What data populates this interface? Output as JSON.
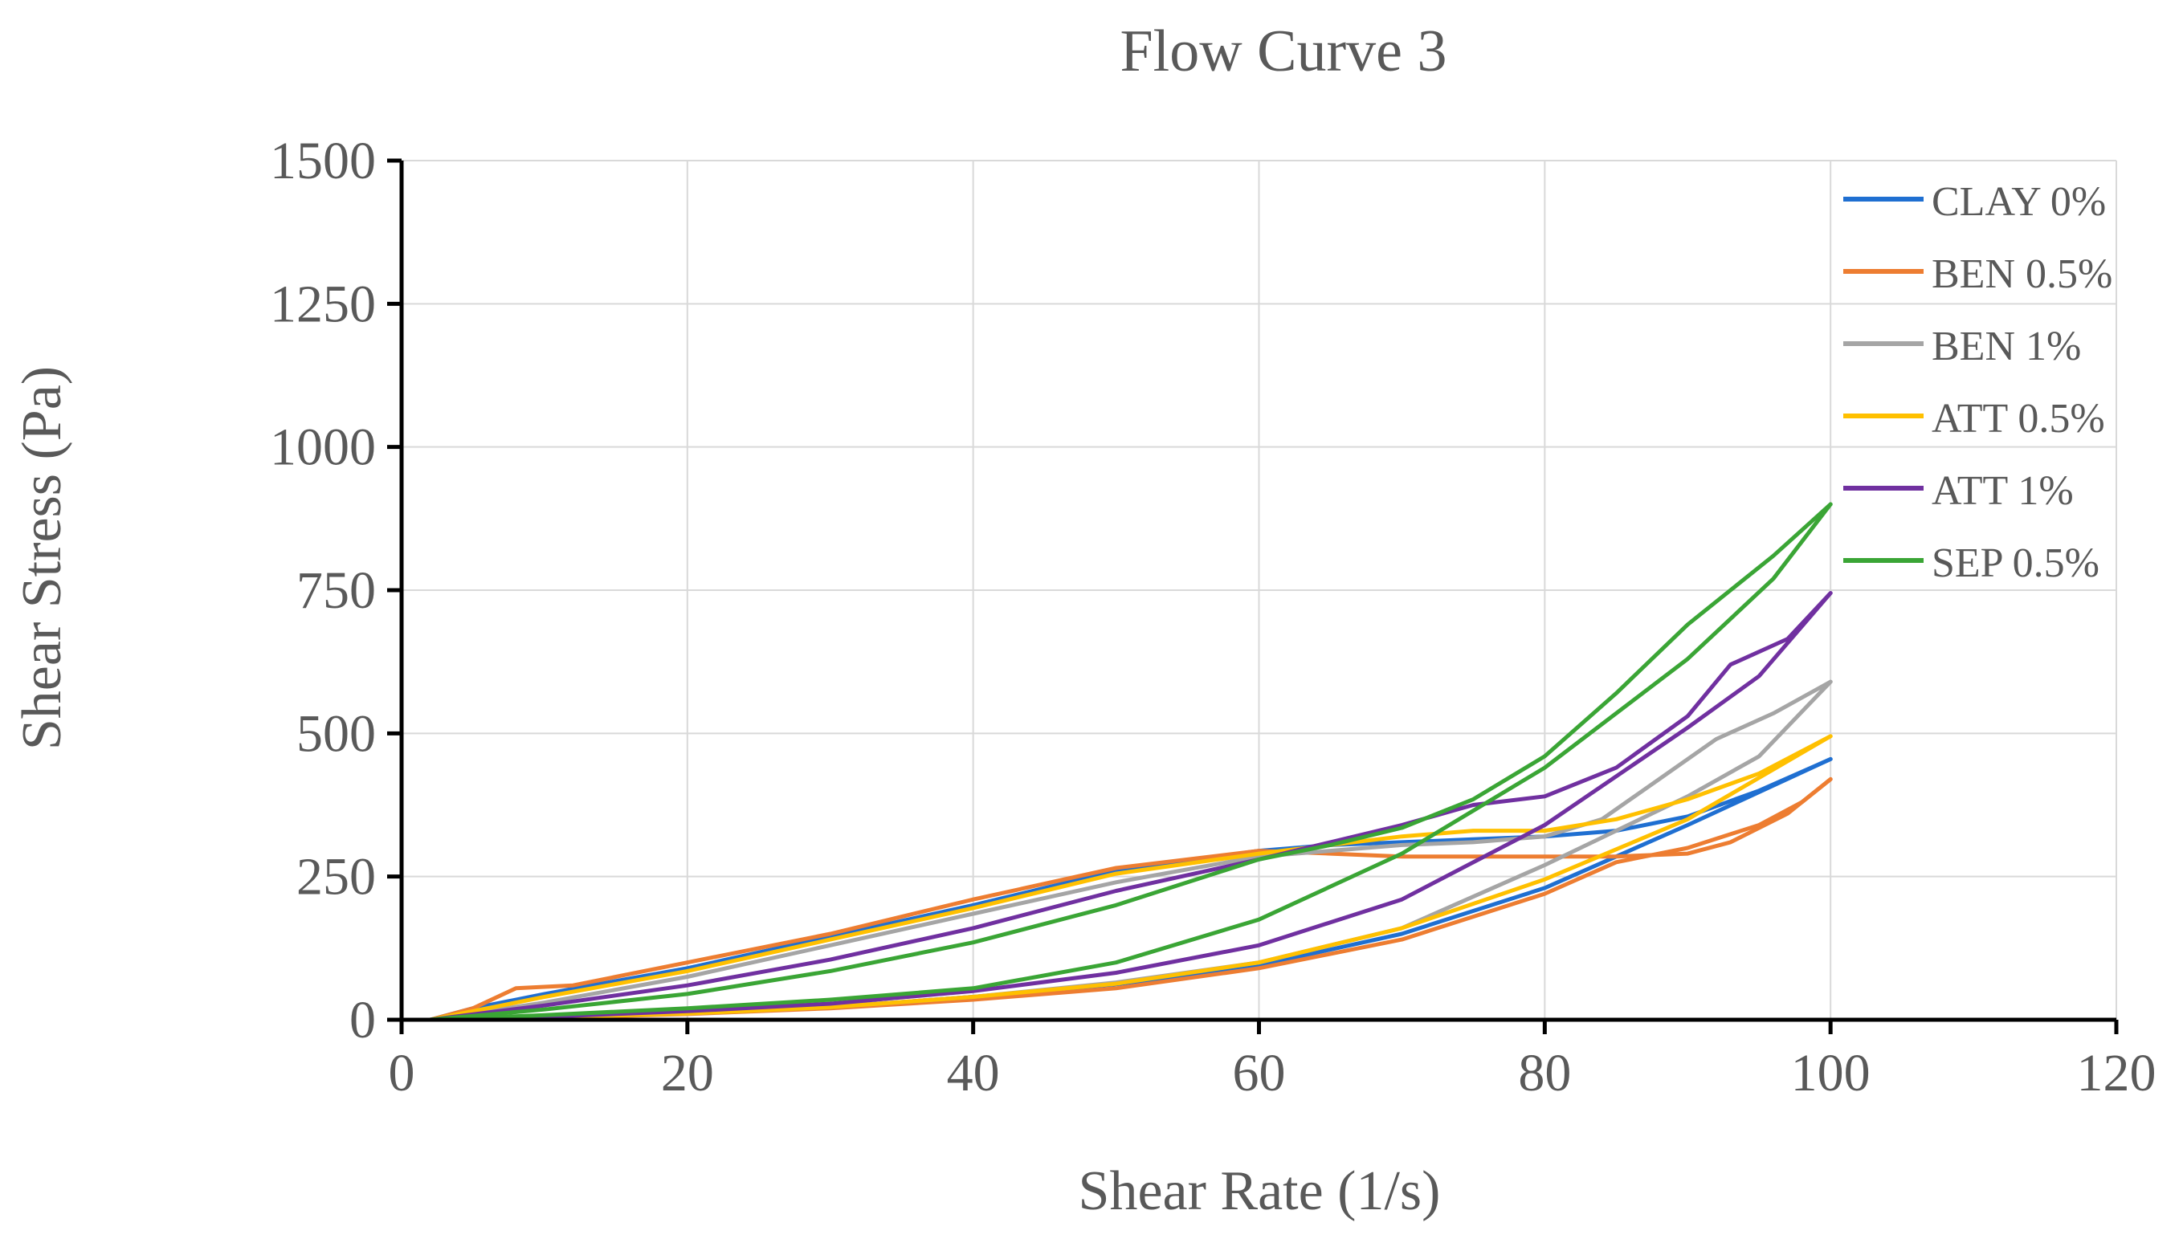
{
  "chart_data": {
    "type": "line",
    "title": "Flow Curve 3",
    "xlabel": "Shear Rate (1/s)",
    "ylabel": "Shear Stress (Pa)",
    "xlim": [
      0,
      120
    ],
    "ylim": [
      0,
      1500
    ],
    "xticks": [
      0,
      20,
      40,
      60,
      80,
      100,
      120
    ],
    "yticks": [
      0,
      250,
      500,
      750,
      1000,
      1250,
      1500
    ],
    "grid": true,
    "legend_position": "top-right",
    "series": [
      {
        "name": "CLAY 0%",
        "color": "#1f6fd1",
        "up": [
          [
            2,
            0
          ],
          [
            10,
            5
          ],
          [
            20,
            12
          ],
          [
            30,
            22
          ],
          [
            40,
            40
          ],
          [
            50,
            62
          ],
          [
            60,
            95
          ],
          [
            70,
            150
          ],
          [
            80,
            230
          ],
          [
            90,
            340
          ],
          [
            100,
            455
          ]
        ],
        "down": [
          [
            100,
            455
          ],
          [
            95,
            400
          ],
          [
            90,
            355
          ],
          [
            85,
            330
          ],
          [
            80,
            320
          ],
          [
            75,
            315
          ],
          [
            70,
            310
          ],
          [
            65,
            305
          ],
          [
            60,
            295
          ],
          [
            50,
            260
          ],
          [
            40,
            200
          ],
          [
            30,
            145
          ],
          [
            20,
            90
          ],
          [
            10,
            45
          ],
          [
            5,
            20
          ],
          [
            2,
            0
          ]
        ]
      },
      {
        "name": "BEN 0.5%",
        "color": "#ed7d31",
        "up": [
          [
            2,
            0
          ],
          [
            10,
            3
          ],
          [
            20,
            10
          ],
          [
            30,
            20
          ],
          [
            40,
            35
          ],
          [
            50,
            55
          ],
          [
            60,
            90
          ],
          [
            70,
            140
          ],
          [
            80,
            220
          ],
          [
            85,
            275
          ],
          [
            90,
            300
          ],
          [
            95,
            340
          ],
          [
            98,
            380
          ],
          [
            100,
            420
          ]
        ],
        "down": [
          [
            100,
            420
          ],
          [
            97,
            360
          ],
          [
            93,
            310
          ],
          [
            90,
            290
          ],
          [
            85,
            285
          ],
          [
            80,
            285
          ],
          [
            75,
            285
          ],
          [
            70,
            285
          ],
          [
            65,
            290
          ],
          [
            60,
            295
          ],
          [
            50,
            265
          ],
          [
            40,
            210
          ],
          [
            30,
            150
          ],
          [
            20,
            100
          ],
          [
            12,
            60
          ],
          [
            8,
            55
          ],
          [
            5,
            20
          ],
          [
            2,
            0
          ]
        ]
      },
      {
        "name": "BEN 1%",
        "color": "#a5a5a5",
        "up": [
          [
            2,
            0
          ],
          [
            10,
            4
          ],
          [
            20,
            11
          ],
          [
            30,
            22
          ],
          [
            40,
            40
          ],
          [
            50,
            65
          ],
          [
            60,
            100
          ],
          [
            70,
            160
          ],
          [
            80,
            270
          ],
          [
            90,
            390
          ],
          [
            95,
            460
          ],
          [
            100,
            590
          ]
        ],
        "down": [
          [
            100,
            590
          ],
          [
            96,
            535
          ],
          [
            92,
            490
          ],
          [
            88,
            420
          ],
          [
            84,
            350
          ],
          [
            80,
            320
          ],
          [
            75,
            310
          ],
          [
            70,
            305
          ],
          [
            65,
            295
          ],
          [
            60,
            285
          ],
          [
            50,
            240
          ],
          [
            40,
            185
          ],
          [
            30,
            130
          ],
          [
            20,
            75
          ],
          [
            10,
            30
          ],
          [
            2,
            0
          ]
        ]
      },
      {
        "name": "ATT 0.5%",
        "color": "#ffc000",
        "up": [
          [
            2,
            0
          ],
          [
            10,
            4
          ],
          [
            20,
            11
          ],
          [
            30,
            22
          ],
          [
            40,
            40
          ],
          [
            50,
            63
          ],
          [
            60,
            100
          ],
          [
            70,
            160
          ],
          [
            80,
            245
          ],
          [
            90,
            350
          ],
          [
            100,
            495
          ]
        ],
        "down": [
          [
            100,
            495
          ],
          [
            95,
            430
          ],
          [
            90,
            385
          ],
          [
            85,
            350
          ],
          [
            80,
            330
          ],
          [
            75,
            330
          ],
          [
            70,
            320
          ],
          [
            65,
            305
          ],
          [
            60,
            290
          ],
          [
            50,
            255
          ],
          [
            40,
            195
          ],
          [
            30,
            140
          ],
          [
            20,
            85
          ],
          [
            10,
            40
          ],
          [
            2,
            0
          ]
        ]
      },
      {
        "name": "ATT 1%",
        "color": "#7030a0",
        "up": [
          [
            2,
            0
          ],
          [
            10,
            5
          ],
          [
            20,
            15
          ],
          [
            30,
            28
          ],
          [
            40,
            50
          ],
          [
            50,
            82
          ],
          [
            60,
            130
          ],
          [
            70,
            210
          ],
          [
            80,
            340
          ],
          [
            90,
            510
          ],
          [
            95,
            600
          ],
          [
            100,
            745
          ]
        ],
        "down": [
          [
            100,
            745
          ],
          [
            97,
            665
          ],
          [
            93,
            620
          ],
          [
            90,
            530
          ],
          [
            85,
            440
          ],
          [
            80,
            390
          ],
          [
            75,
            375
          ],
          [
            70,
            340
          ],
          [
            65,
            310
          ],
          [
            60,
            280
          ],
          [
            50,
            225
          ],
          [
            40,
            160
          ],
          [
            30,
            105
          ],
          [
            20,
            60
          ],
          [
            10,
            25
          ],
          [
            2,
            0
          ]
        ]
      },
      {
        "name": "SEP 0.5%",
        "color": "#3aa535",
        "up": [
          [
            2,
            0
          ],
          [
            10,
            8
          ],
          [
            20,
            20
          ],
          [
            30,
            35
          ],
          [
            40,
            55
          ],
          [
            50,
            100
          ],
          [
            60,
            175
          ],
          [
            70,
            290
          ],
          [
            80,
            440
          ],
          [
            90,
            630
          ],
          [
            96,
            770
          ],
          [
            100,
            900
          ]
        ],
        "down": [
          [
            100,
            900
          ],
          [
            96,
            810
          ],
          [
            90,
            690
          ],
          [
            85,
            570
          ],
          [
            80,
            460
          ],
          [
            75,
            385
          ],
          [
            70,
            335
          ],
          [
            65,
            305
          ],
          [
            60,
            280
          ],
          [
            50,
            200
          ],
          [
            40,
            135
          ],
          [
            30,
            85
          ],
          [
            20,
            45
          ],
          [
            10,
            18
          ],
          [
            2,
            0
          ]
        ]
      }
    ]
  }
}
